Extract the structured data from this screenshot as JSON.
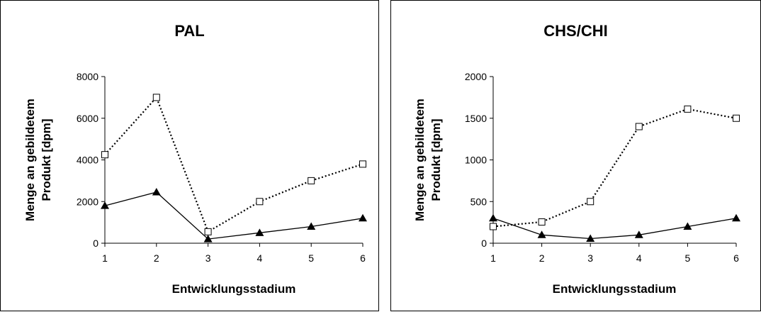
{
  "chart_data": [
    {
      "type": "line",
      "title": "PAL",
      "xlabel": "Entwicklungsstadium",
      "ylabel_lines": [
        "Menge an gebildetem",
        "Produkt [dpm]"
      ],
      "x": [
        1,
        2,
        3,
        4,
        5,
        6
      ],
      "xticks": [
        "1",
        "2",
        "3",
        "4",
        "5",
        "6"
      ],
      "yticks": [
        "0",
        "2000",
        "4000",
        "6000",
        "8000"
      ],
      "ylim": [
        0,
        8000
      ],
      "grid": false,
      "series": [
        {
          "marker": "open-square",
          "line_style": "dotted",
          "color": "#000000",
          "values": [
            4250,
            7000,
            550,
            2000,
            3000,
            3800
          ]
        },
        {
          "marker": "filled-triangle",
          "line_style": "solid",
          "color": "#000000",
          "values": [
            1800,
            2450,
            200,
            500,
            800,
            1200
          ]
        }
      ]
    },
    {
      "type": "line",
      "title": "CHS/CHI",
      "xlabel": "Entwicklungsstadium",
      "ylabel_lines": [
        "Menge an gebildetem",
        "Produkt [dpm]"
      ],
      "x": [
        1,
        2,
        3,
        4,
        5,
        6
      ],
      "xticks": [
        "1",
        "2",
        "3",
        "4",
        "5",
        "6"
      ],
      "yticks": [
        "0",
        "500",
        "1000",
        "1500",
        "2000"
      ],
      "ylim": [
        0,
        2000
      ],
      "grid": false,
      "series": [
        {
          "marker": "open-square",
          "line_style": "dotted",
          "color": "#000000",
          "values": [
            200,
            255,
            500,
            1400,
            1610,
            1500
          ]
        },
        {
          "marker": "filled-triangle",
          "line_style": "solid",
          "color": "#000000",
          "values": [
            300,
            100,
            55,
            100,
            200,
            300
          ]
        }
      ]
    }
  ]
}
